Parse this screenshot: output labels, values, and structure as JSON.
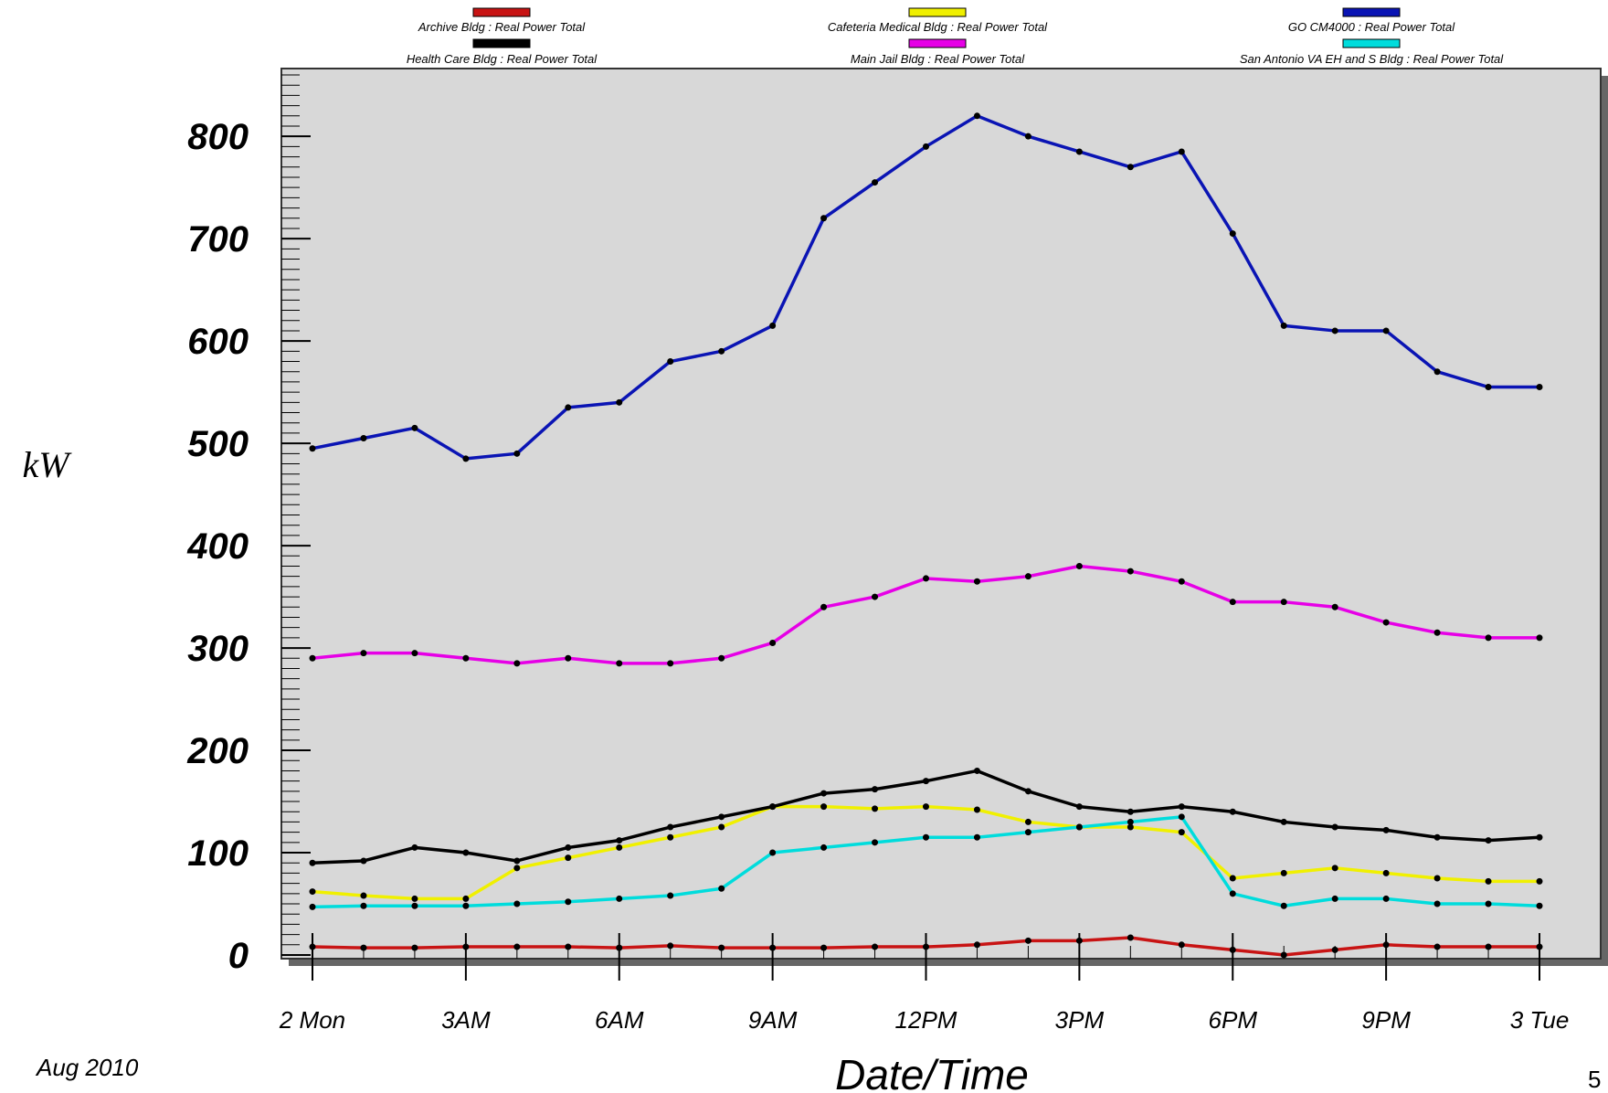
{
  "colors": {
    "plot_background": "#d8d8d8",
    "Archive": "#c81414",
    "Cafeteria": "#f0f000",
    "GO": "#0a14b4",
    "HealthCare": "#000000",
    "MainJail": "#e600e6",
    "SanAntonio": "#00dcdc"
  },
  "date_note": "Aug 2010",
  "page_number": "5",
  "chart_data": {
    "type": "line",
    "xlabel": "Date/Time",
    "ylabel": "kW",
    "ylim": [
      0,
      860
    ],
    "xlim": [
      -1,
      24
    ],
    "yticks": [
      0,
      100,
      200,
      300,
      400,
      500,
      600,
      700,
      800
    ],
    "ytick_labels": [
      "0",
      "100",
      "200",
      "300",
      "400",
      "500",
      "600",
      "700",
      "800"
    ],
    "xticks": [
      0,
      3,
      6,
      9,
      12,
      15,
      18,
      21,
      24
    ],
    "xtick_labels": [
      "2 Mon",
      "3AM",
      "6AM",
      "9AM",
      "12PM",
      "3PM",
      "6PM",
      "9PM",
      "3 Tue"
    ],
    "x_unit": "hours",
    "legend_position": "top",
    "grid": false,
    "x": [
      0,
      1,
      2,
      3,
      4,
      5,
      6,
      7,
      8,
      9,
      10,
      11,
      12,
      13,
      14,
      15,
      16,
      17,
      18,
      19,
      20,
      21,
      22,
      23,
      24
    ],
    "series": [
      {
        "name": "Archive Bldg : Real Power Total",
        "color_key": "Archive",
        "values": [
          8,
          7,
          7,
          8,
          8,
          8,
          7,
          9,
          7,
          7,
          7,
          8,
          8,
          10,
          14,
          14,
          17,
          10,
          5,
          0,
          5,
          10,
          8,
          8,
          8
        ]
      },
      {
        "name": "Cafeteria Medical Bldg : Real Power Total",
        "color_key": "Cafeteria",
        "values": [
          62,
          58,
          55,
          55,
          85,
          95,
          105,
          115,
          125,
          145,
          145,
          143,
          145,
          142,
          130,
          125,
          125,
          120,
          75,
          80,
          85,
          80,
          75,
          72,
          72
        ]
      },
      {
        "name": "GO CM4000 : Real Power Total",
        "color_key": "GO",
        "values": [
          495,
          505,
          515,
          485,
          490,
          535,
          540,
          580,
          590,
          615,
          720,
          755,
          790,
          820,
          800,
          785,
          770,
          785,
          705,
          615,
          610,
          610,
          570,
          555,
          555
        ]
      },
      {
        "name": "Health Care Bldg : Real Power Total",
        "color_key": "HealthCare",
        "values": [
          90,
          92,
          105,
          100,
          92,
          105,
          112,
          125,
          135,
          145,
          158,
          162,
          170,
          180,
          160,
          145,
          140,
          145,
          140,
          130,
          125,
          122,
          115,
          112,
          115
        ]
      },
      {
        "name": "Main Jail Bldg : Real Power Total",
        "color_key": "MainJail",
        "values": [
          290,
          295,
          295,
          290,
          285,
          290,
          285,
          285,
          290,
          305,
          340,
          350,
          368,
          365,
          370,
          380,
          375,
          365,
          345,
          345,
          340,
          325,
          315,
          310,
          310
        ]
      },
      {
        "name": "San Antonio VA EH and S Bldg : Real Power Total",
        "color_key": "SanAntonio",
        "values": [
          47,
          48,
          48,
          48,
          50,
          52,
          55,
          58,
          65,
          100,
          105,
          110,
          115,
          115,
          120,
          125,
          130,
          135,
          60,
          48,
          55,
          55,
          50,
          50,
          48
        ]
      }
    ]
  }
}
